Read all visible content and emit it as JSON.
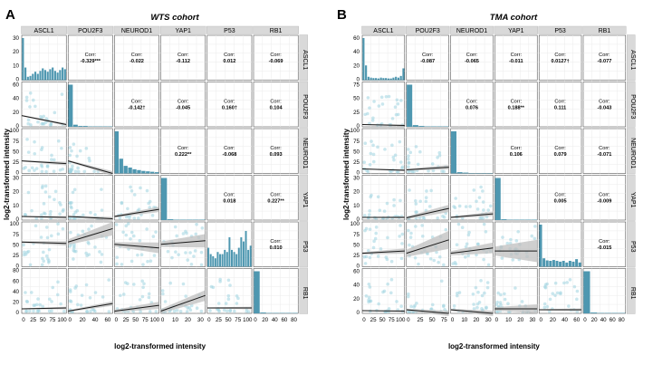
{
  "panels": [
    {
      "letter": "A",
      "title": "WTS cohort",
      "xlabel": "log2-transformed intensity",
      "ylabel": "log2-transformed intensity",
      "variables": [
        "ASCL1",
        "POU2F3",
        "NEUROD1",
        "YAP1",
        "P53",
        "RB1"
      ],
      "x_ticks": [
        [
          "0",
          "25",
          "50",
          "75",
          "100"
        ],
        [
          "0",
          "20",
          "40",
          "60"
        ],
        [
          "0",
          "25",
          "50",
          "75",
          "100"
        ],
        [
          "0",
          "10",
          "20",
          "30"
        ],
        [
          "0",
          "25",
          "50",
          "75",
          "100"
        ],
        [
          "0",
          "20",
          "40",
          "60",
          "80"
        ]
      ],
      "y_ticks": [
        [
          "0",
          "10",
          "20",
          "30"
        ],
        [
          "0",
          "20",
          "40",
          "60"
        ],
        [
          "0",
          "25",
          "50",
          "75",
          "100"
        ],
        [
          "0",
          "10",
          "20",
          "30"
        ],
        [
          "0",
          "25",
          "50",
          "75",
          "100"
        ],
        [
          "0",
          "20",
          "40",
          "60",
          "80"
        ]
      ],
      "corr_label": "Corr:",
      "correlations": [
        {
          "row": 1,
          "col": 2,
          "value": "-0.329***"
        },
        {
          "row": 1,
          "col": 3,
          "value": "-0.022"
        },
        {
          "row": 1,
          "col": 4,
          "value": "-0.112"
        },
        {
          "row": 1,
          "col": 5,
          "value": "0.012"
        },
        {
          "row": 1,
          "col": 6,
          "value": "-0.069"
        },
        {
          "row": 2,
          "col": 3,
          "value": "-0.142†"
        },
        {
          "row": 2,
          "col": 4,
          "value": "-0.045"
        },
        {
          "row": 2,
          "col": 5,
          "value": "0.160†"
        },
        {
          "row": 2,
          "col": 6,
          "value": "0.104"
        },
        {
          "row": 3,
          "col": 4,
          "value": "0.222**"
        },
        {
          "row": 3,
          "col": 5,
          "value": "-0.068"
        },
        {
          "row": 3,
          "col": 6,
          "value": "0.093"
        },
        {
          "row": 4,
          "col": 5,
          "value": "0.018"
        },
        {
          "row": 4,
          "col": 6,
          "value": "0.227**"
        },
        {
          "row": 5,
          "col": 6,
          "value": "0.010"
        }
      ]
    },
    {
      "letter": "B",
      "title": "TMA cohort",
      "xlabel": "log2-transformed intensity",
      "ylabel": "log2-transformed intensity",
      "variables": [
        "ASCL1",
        "POU2F3",
        "NEUROD1",
        "YAP1",
        "P53",
        "RB1"
      ],
      "x_ticks": [
        [
          "0",
          "25",
          "50",
          "75",
          "100"
        ],
        [
          "0",
          "25",
          "50",
          "75"
        ],
        [
          "0",
          "10",
          "20",
          "30"
        ],
        [
          "0",
          "10",
          "20",
          "30"
        ],
        [
          "0",
          "20",
          "40",
          "60"
        ],
        [
          "0",
          "20",
          "40",
          "60",
          "80"
        ]
      ],
      "y_ticks": [
        [
          "0",
          "20",
          "40",
          "60"
        ],
        [
          "0",
          "25",
          "50",
          "75"
        ],
        [
          "0",
          "25",
          "50",
          "75",
          "100"
        ],
        [
          "0",
          "10",
          "20",
          "30"
        ],
        [
          "0",
          "25",
          "50",
          "75",
          "100"
        ],
        [
          "0",
          "20",
          "40",
          "60"
        ]
      ],
      "corr_label": "Corr:",
      "correlations": [
        {
          "row": 1,
          "col": 2,
          "value": "-0.087"
        },
        {
          "row": 1,
          "col": 3,
          "value": "-0.065"
        },
        {
          "row": 1,
          "col": 4,
          "value": "-0.011"
        },
        {
          "row": 1,
          "col": 5,
          "value": "0.0127†"
        },
        {
          "row": 1,
          "col": 6,
          "value": "-0.077"
        },
        {
          "row": 2,
          "col": 3,
          "value": "0.076"
        },
        {
          "row": 2,
          "col": 4,
          "value": "0.188**"
        },
        {
          "row": 2,
          "col": 5,
          "value": "0.111"
        },
        {
          "row": 2,
          "col": 6,
          "value": "-0.043"
        },
        {
          "row": 3,
          "col": 4,
          "value": "0.106"
        },
        {
          "row": 3,
          "col": 5,
          "value": "0.079"
        },
        {
          "row": 3,
          "col": 6,
          "value": "-0.071"
        },
        {
          "row": 4,
          "col": 5,
          "value": "0.005"
        },
        {
          "row": 4,
          "col": 6,
          "value": "-0.009"
        },
        {
          "row": 5,
          "col": 6,
          "value": "-0.015"
        }
      ]
    }
  ],
  "colors": {
    "point": "#9fd3e0",
    "bar": "#4e97b0",
    "line": "#1a1a1a",
    "band": "#bfbfbf",
    "strip": "#d9d9d9",
    "grid": "#ebebeb"
  },
  "chart_data": [
    {
      "type": "scatter",
      "title": "WTS cohort",
      "xlabel": "log2-transformed intensity",
      "ylabel": "log2-transformed intensity",
      "variables": [
        "ASCL1",
        "POU2F3",
        "NEUROD1",
        "YAP1",
        "P53",
        "RB1"
      ],
      "diagonal": "histogram",
      "upper": "correlation",
      "lower": "scatter with linear fit",
      "correlations": {
        "ASCL1-POU2F3": "-0.329***",
        "ASCL1-NEUROD1": "-0.022",
        "ASCL1-YAP1": "-0.112",
        "ASCL1-P53": "0.012",
        "ASCL1-RB1": "-0.069",
        "POU2F3-NEUROD1": "-0.142†",
        "POU2F3-YAP1": "-0.045",
        "POU2F3-P53": "0.160†",
        "POU2F3-RB1": "0.104",
        "NEUROD1-YAP1": "0.222**",
        "NEUROD1-P53": "-0.068",
        "NEUROD1-RB1": "0.093",
        "YAP1-P53": "0.018",
        "YAP1-RB1": "0.227**",
        "P53-RB1": "0.010"
      }
    },
    {
      "type": "scatter",
      "title": "TMA cohort",
      "xlabel": "log2-transformed intensity",
      "ylabel": "log2-transformed intensity",
      "variables": [
        "ASCL1",
        "POU2F3",
        "NEUROD1",
        "YAP1",
        "P53",
        "RB1"
      ],
      "diagonal": "histogram",
      "upper": "correlation",
      "lower": "scatter with linear fit",
      "correlations": {
        "ASCL1-POU2F3": "-0.087",
        "ASCL1-NEUROD1": "-0.065",
        "ASCL1-YAP1": "-0.011",
        "ASCL1-P53": "0.0127†",
        "ASCL1-RB1": "-0.077",
        "POU2F3-NEUROD1": "0.076",
        "POU2F3-YAP1": "0.188**",
        "POU2F3-P53": "0.111",
        "POU2F3-RB1": "-0.043",
        "NEUROD1-YAP1": "0.106",
        "NEUROD1-P53": "0.079",
        "NEUROD1-RB1": "-0.071",
        "YAP1-P53": "0.005",
        "YAP1-RB1": "-0.009",
        "P53-RB1": "-0.015"
      }
    }
  ]
}
